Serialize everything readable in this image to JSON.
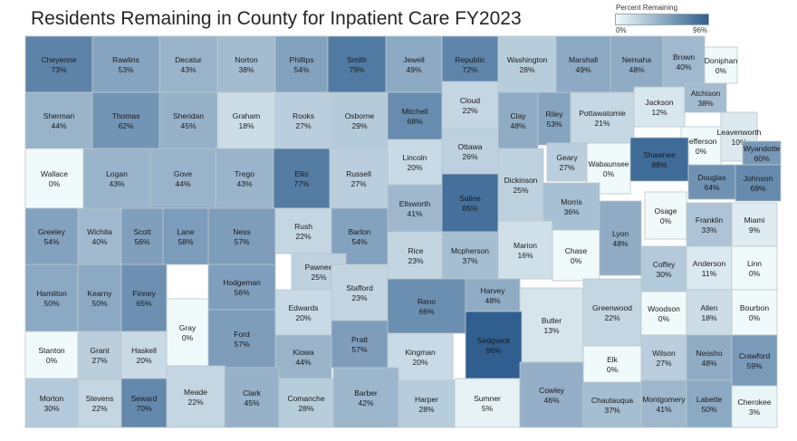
{
  "title": "Residents Remaining in County for Inpatient Care FY2023",
  "legend": {
    "title": "Percent Remaining",
    "min_label": "0%",
    "max_label": "96%",
    "min_color": "#f0fafb",
    "max_color": "#2f5e8f"
  },
  "counties": [
    {
      "name": "Cheyenne",
      "value": "73%",
      "pct": 73
    },
    {
      "name": "Rawlins",
      "value": "53%",
      "pct": 53
    },
    {
      "name": "Decatur",
      "value": "43%",
      "pct": 43
    },
    {
      "name": "Norton",
      "value": "38%",
      "pct": 38
    },
    {
      "name": "Phillips",
      "value": "54%",
      "pct": 54
    },
    {
      "name": "Smith",
      "value": "79%",
      "pct": 79
    },
    {
      "name": "Jewell",
      "value": "49%",
      "pct": 49
    },
    {
      "name": "Republic",
      "value": "72%",
      "pct": 72
    },
    {
      "name": "Washington",
      "value": "28%",
      "pct": 28
    },
    {
      "name": "Marshall",
      "value": "49%",
      "pct": 49
    },
    {
      "name": "Nemaha",
      "value": "48%",
      "pct": 48
    },
    {
      "name": "Brown",
      "value": "40%",
      "pct": 40
    },
    {
      "name": "Doniphan",
      "value": "0%",
      "pct": 0
    },
    {
      "name": "Sherman",
      "value": "44%",
      "pct": 44
    },
    {
      "name": "Thomas",
      "value": "62%",
      "pct": 62
    },
    {
      "name": "Sheridan",
      "value": "45%",
      "pct": 45
    },
    {
      "name": "Graham",
      "value": "18%",
      "pct": 18
    },
    {
      "name": "Rooks",
      "value": "27%",
      "pct": 27
    },
    {
      "name": "Osborne",
      "value": "29%",
      "pct": 29
    },
    {
      "name": "Mitchell",
      "value": "68%",
      "pct": 68
    },
    {
      "name": "Cloud",
      "value": "22%",
      "pct": 22
    },
    {
      "name": "Clay",
      "value": "48%",
      "pct": 48
    },
    {
      "name": "Riley",
      "value": "53%",
      "pct": 53
    },
    {
      "name": "Pottawatomie",
      "value": "21%",
      "pct": 21
    },
    {
      "name": "Jackson",
      "value": "12%",
      "pct": 12
    },
    {
      "name": "Atchison",
      "value": "38%",
      "pct": 38
    },
    {
      "name": "Jefferson",
      "value": "0%",
      "pct": 0
    },
    {
      "name": "Leavenworth",
      "value": "10%",
      "pct": 10
    },
    {
      "name": "Wyandotte",
      "value": "60%",
      "pct": 60
    },
    {
      "name": "Wallace",
      "value": "0%",
      "pct": 0
    },
    {
      "name": "Logan",
      "value": "43%",
      "pct": 43
    },
    {
      "name": "Gove",
      "value": "44%",
      "pct": 44
    },
    {
      "name": "Trego",
      "value": "43%",
      "pct": 43
    },
    {
      "name": "Ellis",
      "value": "77%",
      "pct": 77
    },
    {
      "name": "Russell",
      "value": "27%",
      "pct": 27
    },
    {
      "name": "Lincoln",
      "value": "20%",
      "pct": 20
    },
    {
      "name": "Ottawa",
      "value": "26%",
      "pct": 26
    },
    {
      "name": "Dickinson",
      "value": "25%",
      "pct": 25
    },
    {
      "name": "Geary",
      "value": "27%",
      "pct": 27
    },
    {
      "name": "Wabaunsee",
      "value": "0%",
      "pct": 0
    },
    {
      "name": "Shawnee",
      "value": "88%",
      "pct": 88
    },
    {
      "name": "Douglas",
      "value": "64%",
      "pct": 64
    },
    {
      "name": "Johnson",
      "value": "69%",
      "pct": 69
    },
    {
      "name": "Ellsworth",
      "value": "41%",
      "pct": 41
    },
    {
      "name": "Saline",
      "value": "85%",
      "pct": 85
    },
    {
      "name": "Morris",
      "value": "36%",
      "pct": 36
    },
    {
      "name": "Osage",
      "value": "0%",
      "pct": 0
    },
    {
      "name": "Greeley",
      "value": "54%",
      "pct": 54
    },
    {
      "name": "Wichita",
      "value": "40%",
      "pct": 40
    },
    {
      "name": "Scott",
      "value": "56%",
      "pct": 56
    },
    {
      "name": "Lane",
      "value": "58%",
      "pct": 58
    },
    {
      "name": "Ness",
      "value": "57%",
      "pct": 57
    },
    {
      "name": "Rush",
      "value": "22%",
      "pct": 22
    },
    {
      "name": "Barton",
      "value": "54%",
      "pct": 54
    },
    {
      "name": "Rice",
      "value": "23%",
      "pct": 23
    },
    {
      "name": "Mcpherson",
      "value": "37%",
      "pct": 37
    },
    {
      "name": "Marion",
      "value": "16%",
      "pct": 16
    },
    {
      "name": "Chase",
      "value": "0%",
      "pct": 0
    },
    {
      "name": "Lyon",
      "value": "48%",
      "pct": 48
    },
    {
      "name": "Franklin",
      "value": "33%",
      "pct": 33
    },
    {
      "name": "Miami",
      "value": "9%",
      "pct": 9
    },
    {
      "name": "Hamilton",
      "value": "50%",
      "pct": 50
    },
    {
      "name": "Kearny",
      "value": "50%",
      "pct": 50
    },
    {
      "name": "Finney",
      "value": "65%",
      "pct": 65
    },
    {
      "name": "Hodgeman",
      "value": "56%",
      "pct": 56
    },
    {
      "name": "Pawnee",
      "value": "25%",
      "pct": 25
    },
    {
      "name": "Edwards",
      "value": "20%",
      "pct": 20
    },
    {
      "name": "Stafford",
      "value": "23%",
      "pct": 23
    },
    {
      "name": "Reno",
      "value": "66%",
      "pct": 66
    },
    {
      "name": "Harvey",
      "value": "48%",
      "pct": 48
    },
    {
      "name": "Butler",
      "value": "13%",
      "pct": 13
    },
    {
      "name": "Greenwood",
      "value": "22%",
      "pct": 22
    },
    {
      "name": "Coffey",
      "value": "30%",
      "pct": 30
    },
    {
      "name": "Anderson",
      "value": "11%",
      "pct": 11
    },
    {
      "name": "Linn",
      "value": "0%",
      "pct": 0
    },
    {
      "name": "Gray",
      "value": "0%",
      "pct": 0
    },
    {
      "name": "Ford",
      "value": "57%",
      "pct": 57
    },
    {
      "name": "Woodson",
      "value": "0%",
      "pct": 0
    },
    {
      "name": "Allen",
      "value": "18%",
      "pct": 18
    },
    {
      "name": "Bourbon",
      "value": "0%",
      "pct": 0
    },
    {
      "name": "Stanton",
      "value": "0%",
      "pct": 0
    },
    {
      "name": "Grant",
      "value": "27%",
      "pct": 27
    },
    {
      "name": "Haskell",
      "value": "20%",
      "pct": 20
    },
    {
      "name": "Kiowa",
      "value": "44%",
      "pct": 44
    },
    {
      "name": "Pratt",
      "value": "57%",
      "pct": 57
    },
    {
      "name": "Kingman",
      "value": "20%",
      "pct": 20
    },
    {
      "name": "Sedgwick",
      "value": "96%",
      "pct": 96
    },
    {
      "name": "Wilson",
      "value": "27%",
      "pct": 27
    },
    {
      "name": "Neosho",
      "value": "48%",
      "pct": 48
    },
    {
      "name": "Crawford",
      "value": "59%",
      "pct": 59
    },
    {
      "name": "Elk",
      "value": "0%",
      "pct": 0
    },
    {
      "name": "Morton",
      "value": "30%",
      "pct": 30
    },
    {
      "name": "Stevens",
      "value": "22%",
      "pct": 22
    },
    {
      "name": "Seward",
      "value": "70%",
      "pct": 70
    },
    {
      "name": "Meade",
      "value": "22%",
      "pct": 22
    },
    {
      "name": "Clark",
      "value": "45%",
      "pct": 45
    },
    {
      "name": "Comanche",
      "value": "28%",
      "pct": 28
    },
    {
      "name": "Barber",
      "value": "42%",
      "pct": 42
    },
    {
      "name": "Harper",
      "value": "28%",
      "pct": 28
    },
    {
      "name": "Sumner",
      "value": "5%",
      "pct": 5
    },
    {
      "name": "Cowley",
      "value": "46%",
      "pct": 46
    },
    {
      "name": "Chautauqua",
      "value": "37%",
      "pct": 37
    },
    {
      "name": "Montgomery",
      "value": "41%",
      "pct": 41
    },
    {
      "name": "Labette",
      "value": "50%",
      "pct": 50
    },
    {
      "name": "Cherokee",
      "value": "3%",
      "pct": 3
    }
  ]
}
